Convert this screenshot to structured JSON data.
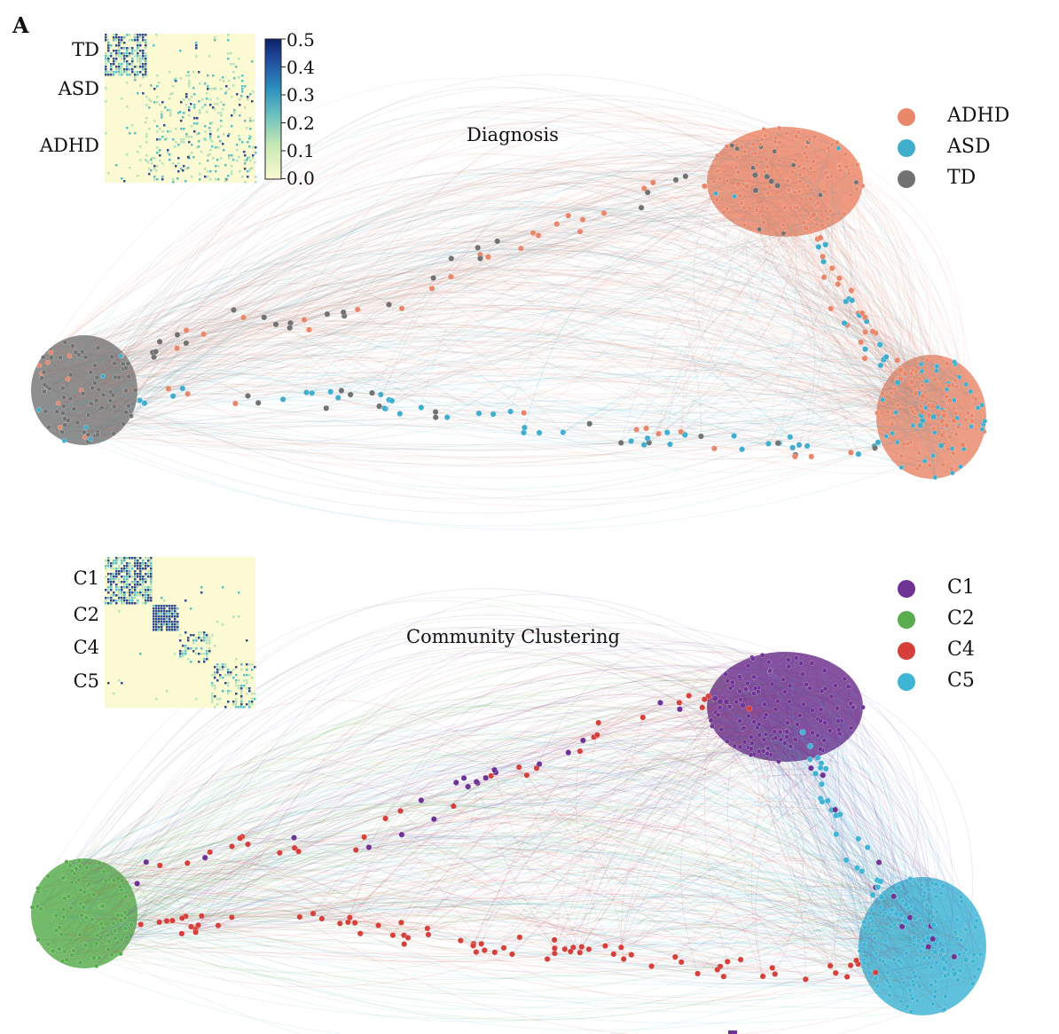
{
  "panel_label": "A",
  "diagnosis_panel": {
    "title": "Diagnosis",
    "legend": [
      {
        "label": "ADHD",
        "color": "#e9876a"
      },
      {
        "label": "ASD",
        "color": "#41aecd"
      },
      {
        "label": "TD",
        "color": "#727272"
      }
    ],
    "heatmap_labels": [
      "TD",
      "ASD",
      "ADHD"
    ],
    "colorbar_ticks": [
      "0.5",
      "0.4",
      "0.3",
      "0.2",
      "0.1",
      "0.0"
    ]
  },
  "community_panel": {
    "title": "Community Clustering",
    "legend": [
      {
        "label": "C1",
        "color": "#6e3394"
      },
      {
        "label": "C2",
        "color": "#59ad4f"
      },
      {
        "label": "C4",
        "color": "#d5403a"
      },
      {
        "label": "C5",
        "color": "#3fb5d6"
      }
    ],
    "heatmap_labels": [
      "C1",
      "C2",
      "C4",
      "C5"
    ]
  },
  "colors": {
    "heatmap_low": "#fbfad2",
    "heatmap_mid": "#41b6c4",
    "heatmap_high": "#0c2c84"
  }
}
